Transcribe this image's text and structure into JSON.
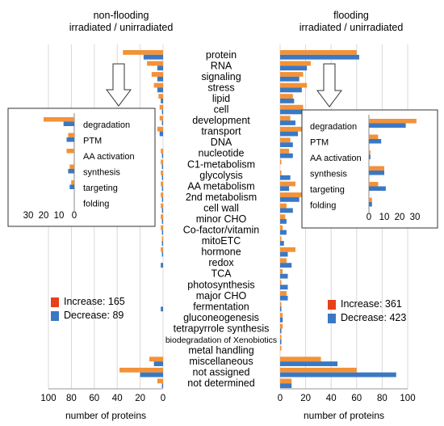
{
  "titles": {
    "left_line1": "non-flooding",
    "left_line2": "irradiated / unirradiated",
    "right_line1": "flooding",
    "right_line2": "irradiated / unirradiated"
  },
  "legend": {
    "left": [
      {
        "label": "Increase",
        "value": "165"
      },
      {
        "label": "Decrease",
        "value": "89"
      }
    ],
    "right": [
      {
        "label": "Increase",
        "value": "361"
      },
      {
        "label": "Decrease",
        "value": "423"
      }
    ]
  },
  "colors": {
    "increase_legend": "#e8401a",
    "increase_bar": "#f39237",
    "decrease": "#3a78c4",
    "grid": "#d8d8d8"
  },
  "chart_data": [
    {
      "type": "bar",
      "orientation": "horizontal",
      "reversed_x": true,
      "title": "non-flooding irradiated / unirradiated",
      "xlabel": "number of proteins",
      "xlim": [
        0,
        100
      ],
      "xticks": [
        "100",
        "80",
        "60",
        "40",
        "20",
        "0"
      ],
      "categories": [
        "protein",
        "RNA",
        "signaling",
        "stress",
        "lipid",
        "cell",
        "development",
        "transport",
        "DNA",
        "nucleotide",
        "C1-metabolism",
        "glycolysis",
        "AA metabolism",
        "2nd metabolism",
        "cell wall",
        "minor CHO",
        "Co-factor/vitamin",
        "mitoETC",
        "hormone",
        "redox",
        "TCA",
        "photosynthesis",
        "major CHO",
        "fermentation",
        "gluconeogenesis",
        "tetrapyrrole synthesis",
        "biodegradation of Xenobiotics",
        "metal handling",
        "miscellaneous",
        "not assigned",
        "not determined"
      ],
      "series": [
        {
          "name": "Increase",
          "values": [
            35,
            14,
            10,
            8,
            4,
            3,
            3,
            5,
            0,
            2,
            2,
            2,
            2,
            2,
            2,
            2,
            2,
            1,
            2,
            0,
            0,
            0,
            0,
            0,
            0,
            0,
            0,
            0,
            12,
            38,
            5
          ]
        },
        {
          "name": "Decrease",
          "values": [
            17,
            5,
            5,
            5,
            2,
            1,
            1,
            3,
            0,
            1,
            1,
            1,
            1,
            1,
            1,
            1,
            1,
            1,
            1,
            2,
            0,
            0,
            0,
            2,
            0,
            0,
            0,
            0,
            8,
            20,
            1
          ]
        }
      ]
    },
    {
      "type": "bar",
      "orientation": "horizontal",
      "reversed_x": true,
      "xlim": [
        0,
        30
      ],
      "xticks": [
        "30",
        "20",
        "10",
        "0"
      ],
      "categories": [
        "degradation",
        "PTM",
        "AA activation",
        "synthesis",
        "targeting",
        "folding"
      ],
      "series": [
        {
          "name": "Increase",
          "values": [
            20,
            4,
            5,
            3,
            2,
            0
          ]
        },
        {
          "name": "Decrease",
          "values": [
            7,
            5,
            0,
            4,
            3,
            0
          ]
        }
      ]
    },
    {
      "type": "bar",
      "orientation": "horizontal",
      "title": "flooding irradiated / unirradiated",
      "xlabel": "number of proteins",
      "xlim": [
        0,
        100
      ],
      "xticks": [
        "0",
        "20",
        "40",
        "60",
        "80",
        "100"
      ],
      "categories": [
        "protein",
        "RNA",
        "signaling",
        "stress",
        "lipid",
        "cell",
        "development",
        "transport",
        "DNA",
        "nucleotide",
        "C1-metabolism",
        "glycolysis",
        "AA metabolism",
        "2nd metabolism",
        "cell wall",
        "minor CHO",
        "Co-factor/vitamin",
        "mitoETC",
        "hormone",
        "redox",
        "TCA",
        "photosynthesis",
        "major CHO",
        "fermentation",
        "gluconeogenesis",
        "tetrapyrrole synthesis",
        "biodegradation of Xenobiotics",
        "metal handling",
        "miscellaneous",
        "not assigned",
        "not determined"
      ],
      "series": [
        {
          "name": "Increase",
          "values": [
            60,
            24,
            18,
            21,
            10,
            18,
            8,
            17,
            8,
            7,
            1,
            1,
            12,
            17,
            5,
            4,
            2,
            1,
            12,
            5,
            2,
            1,
            5,
            1,
            2,
            2,
            1,
            1,
            32,
            60,
            9
          ]
        },
        {
          "name": "Decrease",
          "values": [
            62,
            21,
            15,
            17,
            11,
            22,
            12,
            14,
            10,
            10,
            0,
            8,
            7,
            15,
            10,
            5,
            5,
            3,
            6,
            9,
            6,
            6,
            6,
            1,
            2,
            1,
            1,
            0,
            45,
            91,
            9
          ]
        }
      ]
    },
    {
      "type": "bar",
      "orientation": "horizontal",
      "xlim": [
        0,
        30
      ],
      "xticks": [
        "0",
        "10",
        "20",
        "30"
      ],
      "categories": [
        "degradation",
        "PTM",
        "AA activation",
        "synthesis",
        "targeting",
        "folding"
      ],
      "series": [
        {
          "name": "Increase",
          "values": [
            31,
            6,
            1,
            10,
            6,
            2
          ]
        },
        {
          "name": "Decrease",
          "values": [
            24,
            8,
            1,
            10,
            11,
            2
          ]
        }
      ]
    }
  ]
}
